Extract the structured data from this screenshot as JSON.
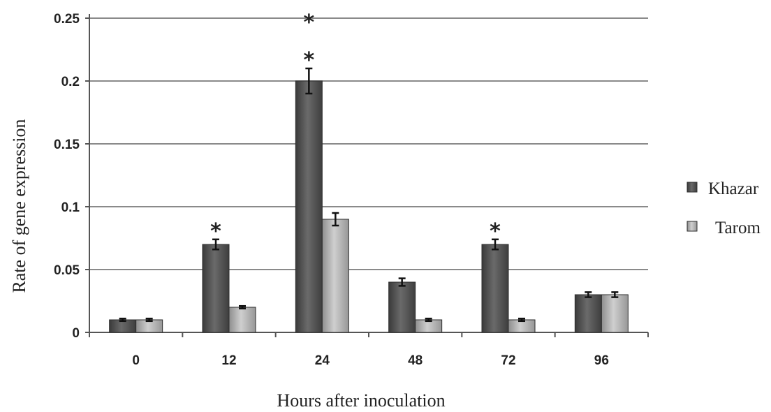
{
  "chart_data": {
    "type": "bar",
    "title": "",
    "xlabel": "Hours after inoculation",
    "ylabel": "Rate of gene expression",
    "categories": [
      "0",
      "12",
      "24",
      "48",
      "72",
      "96"
    ],
    "series": [
      {
        "name": "Khazar",
        "values": [
          0.01,
          0.07,
          0.2,
          0.04,
          0.07,
          0.03
        ],
        "errors": [
          0.001,
          0.004,
          0.01,
          0.003,
          0.004,
          0.002
        ],
        "color": "#4f4f4f"
      },
      {
        "name": "Tarom",
        "values": [
          0.01,
          0.02,
          0.09,
          0.01,
          0.01,
          0.03
        ],
        "errors": [
          0.001,
          0.001,
          0.005,
          0.001,
          0.001,
          0.002
        ],
        "color": "#a9a9a9"
      }
    ],
    "ylim": [
      0,
      0.25
    ],
    "yticks": [
      0,
      0.05,
      0.1,
      0.15,
      0.2,
      0.25
    ],
    "ytick_labels": [
      "0",
      "0.05",
      "0.1",
      "0.15",
      "0.2",
      "0.25"
    ],
    "grid": true,
    "legend_position": "right",
    "annotations": [
      {
        "category": "12",
        "series": "Khazar",
        "text": "*"
      },
      {
        "category": "24",
        "series": "Khazar",
        "text": "*"
      },
      {
        "category": "24",
        "series": "Khazar",
        "text": "*"
      },
      {
        "category": "72",
        "series": "Khazar",
        "text": "*"
      }
    ]
  }
}
